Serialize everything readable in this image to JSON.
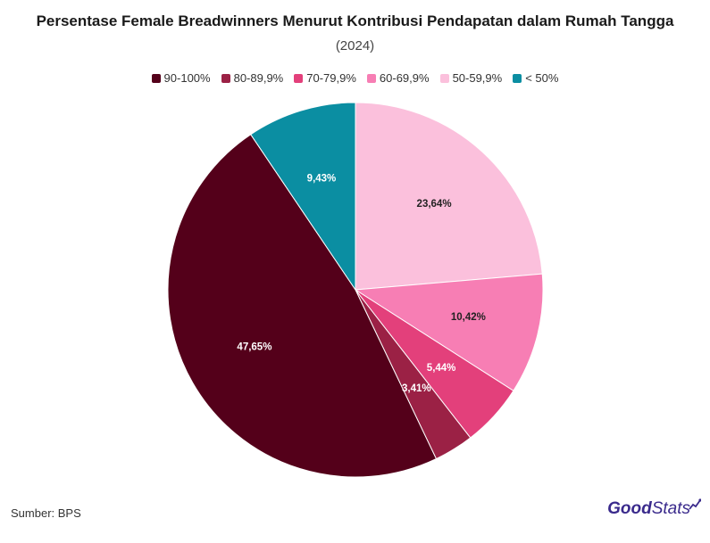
{
  "header": {
    "title": "Persentase Female Breadwinners Menurut Kontribusi Pendapatan dalam Rumah Tangga",
    "subtitle": "(2024)"
  },
  "footer": {
    "source": "Sumber: BPS",
    "logo_good": "Good",
    "logo_stats": "Stats"
  },
  "chart_data": {
    "type": "pie",
    "title": "Persentase Female Breadwinners Menurut Kontribusi Pendapatan dalam Rumah Tangga",
    "subtitle": "(2024)",
    "legend_position": "top",
    "slices": [
      {
        "label": "50-59,9%",
        "value": 23.64,
        "display": "23,64%",
        "color": "#fbc0dc",
        "text_color": "#222222"
      },
      {
        "label": "60-69,9%",
        "value": 10.42,
        "display": "10,42%",
        "color": "#f77eb4",
        "text_color": "#222222"
      },
      {
        "label": "70-79,9%",
        "value": 5.44,
        "display": "5,44%",
        "color": "#e3407b",
        "text_color": "#ffffff"
      },
      {
        "label": "80-89,9%",
        "value": 3.41,
        "display": "3,41%",
        "color": "#9b2145",
        "text_color": "#ffffff"
      },
      {
        "label": "90-100%",
        "value": 47.65,
        "display": "47,65%",
        "color": "#54001a",
        "text_color": "#ffffff"
      },
      {
        "label": "< 50%",
        "value": 9.43,
        "display": "9,43%",
        "color": "#0b8ea2",
        "text_color": "#ffffff"
      }
    ],
    "legend_order": [
      "90-100%",
      "80-89,9%",
      "70-79,9%",
      "60-69,9%",
      "50-59,9%",
      "< 50%"
    ]
  }
}
